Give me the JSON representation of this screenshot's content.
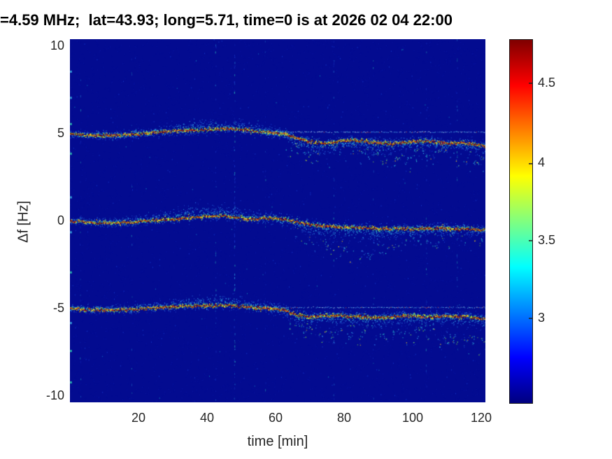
{
  "title": "=4.59 MHz;  lat=43.93; long=5.71, time=0 is at 2026 02 04 22:00",
  "axes": {
    "xlabel": "time [min]",
    "ylabel": "Δf [Hz]",
    "x_ticks": [
      20,
      40,
      60,
      80,
      100,
      120
    ],
    "y_ticks": [
      10,
      5,
      0,
      -5,
      -10
    ]
  },
  "colorbar": {
    "ticks": [
      4.5,
      4,
      3.5,
      3
    ],
    "clim": [
      2.45,
      4.8
    ],
    "colormap": "jet"
  },
  "chart_data": {
    "type": "heatmap",
    "subtype": "doppler-spectrogram",
    "title": "=4.59 MHz;  lat=43.93; long=5.71, time=0 is at 2026 02 04 22:00",
    "xlabel": "time [min]",
    "ylabel": "Δf [Hz]",
    "xlim": [
      0,
      121.3
    ],
    "ylim": [
      -10.4,
      10.4
    ],
    "grid": false,
    "legend": "none",
    "colormap": "jet",
    "clim": [
      2.45,
      4.8
    ],
    "colors": {
      "plot_bg": "#030b90",
      "title_color": "#000000",
      "tick_color": "#262626",
      "ridge_hot": "#c81800",
      "halo_cool": "#2ed3cf"
    },
    "description": "Three Doppler traces near +5, 0 and -5 Hz; tight single ridges until ~60 min, then each splits into a weakened main ridge with diffuse scatter extending ~1-2 Hz below until ~121 min.",
    "stripes": [
      {
        "t": 3,
        "s": 0.3
      },
      {
        "t": 18,
        "s": 0.35
      },
      {
        "t": 42.5,
        "s": 0.6
      },
      {
        "t": 48,
        "s": 1.0
      },
      {
        "t": 57,
        "s": 0.25
      },
      {
        "t": 77,
        "s": 0.45
      },
      {
        "t": 88.5,
        "s": 0.3
      },
      {
        "t": 104,
        "s": 0.5
      },
      {
        "t": 113,
        "s": 0.3
      }
    ],
    "left_edge_specks": [
      8.6,
      7.1,
      5.6,
      3.9,
      1.4,
      -0.6,
      -2.9,
      -5.8,
      -7.4,
      -9.2
    ],
    "bands": [
      {
        "name": "upper-trace-+5Hz",
        "ridge": [
          [
            0,
            5.0
          ],
          [
            6,
            4.92
          ],
          [
            12,
            4.9
          ],
          [
            18,
            4.98
          ],
          [
            24,
            5.08
          ],
          [
            30,
            5.18
          ],
          [
            36,
            5.22
          ],
          [
            42,
            5.28
          ],
          [
            48,
            5.3
          ],
          [
            54,
            5.15
          ],
          [
            60,
            5.05
          ],
          [
            63,
            4.98
          ],
          [
            66,
            4.75
          ],
          [
            70,
            4.55
          ],
          [
            74,
            4.45
          ],
          [
            78,
            4.55
          ],
          [
            82,
            4.65
          ],
          [
            86,
            4.6
          ],
          [
            90,
            4.5
          ],
          [
            94,
            4.42
          ],
          [
            98,
            4.52
          ],
          [
            102,
            4.6
          ],
          [
            106,
            4.55
          ],
          [
            110,
            4.45
          ],
          [
            114,
            4.5
          ],
          [
            118,
            4.42
          ],
          [
            121,
            4.3
          ]
        ],
        "halo_up": [
          [
            0,
            0.22
          ],
          [
            25,
            0.3
          ],
          [
            32,
            0.5
          ],
          [
            40,
            0.55
          ],
          [
            50,
            0.45
          ],
          [
            58,
            0.3
          ],
          [
            70,
            0.3
          ],
          [
            121,
            0.3
          ]
        ],
        "halo_down": [
          [
            0,
            0.22
          ],
          [
            30,
            0.3
          ],
          [
            55,
            0.25
          ],
          [
            62,
            0.35
          ],
          [
            66,
            0.6
          ],
          [
            72,
            0.7
          ],
          [
            80,
            0.5
          ],
          [
            90,
            0.6
          ],
          [
            100,
            0.5
          ],
          [
            110,
            0.5
          ],
          [
            121,
            0.6
          ]
        ],
        "thin": {
          "from": 50,
          "to": 121.3,
          "f": 5.1
        },
        "diffuse": [
          [
            63,
            4.4
          ],
          [
            67,
            4.0
          ],
          [
            71,
            3.8
          ],
          [
            75,
            3.9
          ],
          [
            79,
            4.1
          ],
          [
            83,
            4.2
          ],
          [
            87,
            4.0
          ],
          [
            91,
            3.7
          ],
          [
            95,
            3.55
          ],
          [
            99,
            3.7
          ],
          [
            103,
            3.9
          ],
          [
            107,
            4.0
          ],
          [
            111,
            3.8
          ],
          [
            115,
            3.6
          ],
          [
            118,
            3.4
          ],
          [
            121,
            3.2
          ]
        ],
        "diffuse_spread": 0.35,
        "diffuse_density": 0.75
      },
      {
        "name": "middle-trace-0Hz",
        "ridge": [
          [
            0,
            0.0
          ],
          [
            6,
            -0.06
          ],
          [
            12,
            -0.1
          ],
          [
            18,
            -0.04
          ],
          [
            24,
            0.04
          ],
          [
            30,
            0.12
          ],
          [
            36,
            0.22
          ],
          [
            42,
            0.28
          ],
          [
            45,
            0.3
          ],
          [
            48,
            0.22
          ],
          [
            52,
            0.12
          ],
          [
            56,
            0.15
          ],
          [
            60,
            0.18
          ],
          [
            64,
            0.05
          ],
          [
            68,
            -0.1
          ],
          [
            72,
            -0.25
          ],
          [
            76,
            -0.3
          ],
          [
            80,
            -0.35
          ],
          [
            84,
            -0.38
          ],
          [
            88,
            -0.4
          ],
          [
            92,
            -0.42
          ],
          [
            96,
            -0.45
          ],
          [
            100,
            -0.45
          ],
          [
            104,
            -0.42
          ],
          [
            108,
            -0.4
          ],
          [
            112,
            -0.42
          ],
          [
            116,
            -0.45
          ],
          [
            121,
            -0.5
          ]
        ],
        "halo_up": [
          [
            0,
            0.22
          ],
          [
            24,
            0.3
          ],
          [
            30,
            0.55
          ],
          [
            38,
            0.7
          ],
          [
            46,
            0.6
          ],
          [
            54,
            0.4
          ],
          [
            60,
            0.3
          ],
          [
            121,
            0.28
          ]
        ],
        "halo_down": [
          [
            0,
            0.22
          ],
          [
            55,
            0.25
          ],
          [
            64,
            0.4
          ],
          [
            70,
            0.6
          ],
          [
            78,
            0.7
          ],
          [
            86,
            0.75
          ],
          [
            94,
            0.6
          ],
          [
            102,
            0.45
          ],
          [
            110,
            0.4
          ],
          [
            121,
            0.4
          ]
        ],
        "thin": null,
        "diffuse": [
          [
            66,
            -0.9
          ],
          [
            70,
            -1.1
          ],
          [
            74,
            -1.3
          ],
          [
            78,
            -1.55
          ],
          [
            82,
            -1.75
          ],
          [
            86,
            -1.9
          ],
          [
            90,
            -1.8
          ],
          [
            94,
            -1.55
          ],
          [
            98,
            -1.3
          ],
          [
            102,
            -1.1
          ],
          [
            106,
            -1.0
          ],
          [
            110,
            -0.95
          ],
          [
            114,
            -0.9
          ],
          [
            118,
            -0.85
          ],
          [
            121,
            -0.9
          ]
        ],
        "diffuse_spread": 0.3,
        "diffuse_density": 0.6
      },
      {
        "name": "lower-trace--5Hz",
        "ridge": [
          [
            0,
            -5.0
          ],
          [
            6,
            -5.06
          ],
          [
            12,
            -5.1
          ],
          [
            18,
            -5.04
          ],
          [
            24,
            -4.98
          ],
          [
            30,
            -4.9
          ],
          [
            36,
            -4.84
          ],
          [
            42,
            -4.86
          ],
          [
            46,
            -4.82
          ],
          [
            50,
            -4.88
          ],
          [
            54,
            -4.95
          ],
          [
            58,
            -5.0
          ],
          [
            62,
            -5.08
          ],
          [
            66,
            -5.35
          ],
          [
            70,
            -5.5
          ],
          [
            74,
            -5.45
          ],
          [
            78,
            -5.4
          ],
          [
            82,
            -5.45
          ],
          [
            86,
            -5.5
          ],
          [
            90,
            -5.55
          ],
          [
            94,
            -5.5
          ],
          [
            98,
            -5.42
          ],
          [
            102,
            -5.45
          ],
          [
            106,
            -5.5
          ],
          [
            110,
            -5.42
          ],
          [
            114,
            -5.48
          ],
          [
            118,
            -5.52
          ],
          [
            121,
            -5.6
          ]
        ],
        "halo_up": [
          [
            0,
            0.22
          ],
          [
            30,
            0.35
          ],
          [
            36,
            0.55
          ],
          [
            44,
            0.6
          ],
          [
            52,
            0.5
          ],
          [
            58,
            0.35
          ],
          [
            64,
            0.3
          ],
          [
            121,
            0.3
          ]
        ],
        "halo_down": [
          [
            0,
            0.22
          ],
          [
            55,
            0.25
          ],
          [
            62,
            0.35
          ],
          [
            68,
            0.55
          ],
          [
            76,
            0.6
          ],
          [
            84,
            0.55
          ],
          [
            92,
            0.5
          ],
          [
            100,
            0.5
          ],
          [
            108,
            0.5
          ],
          [
            116,
            0.55
          ],
          [
            121,
            0.6
          ]
        ],
        "thin": {
          "from": 55,
          "to": 121.3,
          "f": -4.95
        },
        "diffuse": [
          [
            64,
            -5.9
          ],
          [
            68,
            -6.15
          ],
          [
            72,
            -6.35
          ],
          [
            76,
            -6.55
          ],
          [
            80,
            -6.7
          ],
          [
            84,
            -6.5
          ],
          [
            88,
            -6.3
          ],
          [
            92,
            -6.2
          ],
          [
            96,
            -6.4
          ],
          [
            100,
            -6.5
          ],
          [
            104,
            -6.35
          ],
          [
            108,
            -6.5
          ],
          [
            112,
            -6.7
          ],
          [
            116,
            -6.9
          ],
          [
            121,
            -7.05
          ]
        ],
        "diffuse_spread": 0.3,
        "diffuse_density": 0.65
      }
    ]
  }
}
